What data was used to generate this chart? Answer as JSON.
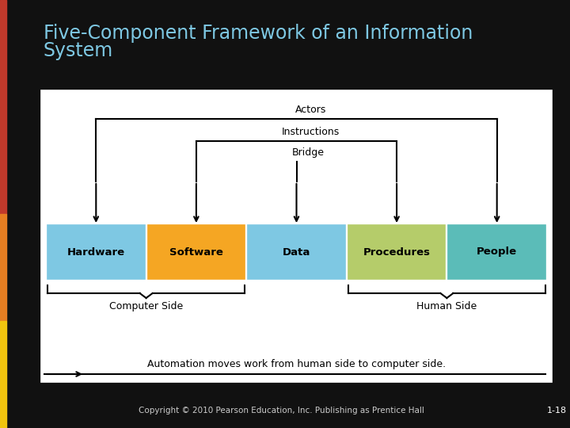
{
  "title_line1": "Five-Component Framework of an Information",
  "title_line2": "System",
  "background_color": "#111111",
  "box_colors": [
    "#7ec8e3",
    "#f5a623",
    "#7ec8e3",
    "#b5cc6a",
    "#5bbcb8"
  ],
  "box_labels": [
    "Hardware",
    "Software",
    "Data",
    "Procedures",
    "People"
  ],
  "bracket_label_left": "Computer Side",
  "bracket_label_right": "Human Side",
  "automation_text": "Automation moves work from human side to computer side.",
  "actors_label": "Actors",
  "instructions_label": "Instructions",
  "bridge_label": "Bridge",
  "copyright_text": "Copyright © 2010 Pearson Education, Inc. Publishing as Prentice Hall",
  "slide_number": "1-18",
  "title_color": "#7ec8e3",
  "accent_bar_colors": [
    "#c0392b",
    "#c0392b",
    "#e67e22",
    "#f1c40f"
  ],
  "white_panel_bg": "#ffffff"
}
